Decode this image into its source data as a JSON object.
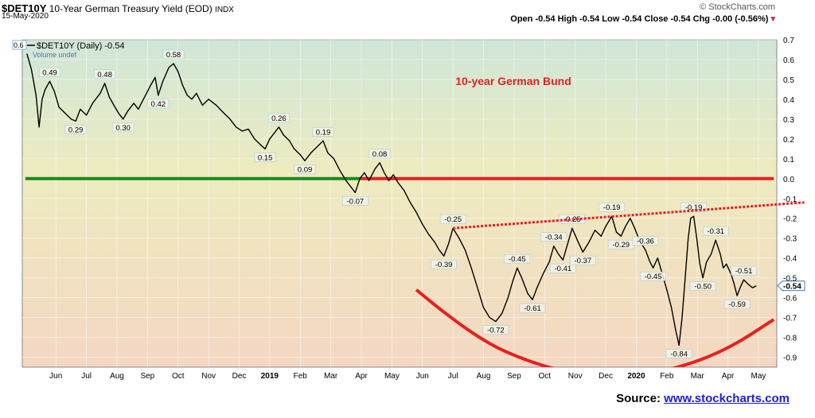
{
  "header": {
    "symbol": "$DET10Y",
    "name": "10-Year German Treasury Yield (EOD)",
    "exchange": "INDX",
    "date": "15-May-2020",
    "legend_series": "$DET10Y (Daily) -0.54",
    "legend_volume": "Volume undef",
    "left_marker": "0.6",
    "brand": "© StockCharts.com",
    "ohlc": {
      "open_label": "Open",
      "open": "-0.54",
      "high_label": "High",
      "high": "-0.54",
      "low_label": "Low",
      "low": "-0.54",
      "close_label": "Close",
      "close": "-0.54",
      "chg_label": "Chg",
      "chg": "-0.00 (-0.56%)"
    }
  },
  "source": {
    "label": "Source:",
    "link": "www.stockcharts.com"
  },
  "chart_data": {
    "type": "line",
    "title": "10-year German Bund",
    "ylim": [
      -0.95,
      0.7
    ],
    "y_ticks": [
      "0.7",
      "0.6",
      "0.5",
      "0.4",
      "0.3",
      "0.2",
      "0.1",
      "0.0",
      "-0.1",
      "-0.2",
      "-0.3",
      "-0.4",
      "-0.5",
      "-0.6",
      "-0.7",
      "-0.8",
      "-0.9"
    ],
    "y_tick_values": [
      0.7,
      0.6,
      0.5,
      0.4,
      0.3,
      0.2,
      0.1,
      0.0,
      -0.1,
      -0.2,
      -0.3,
      -0.4,
      -0.5,
      -0.6,
      -0.7,
      -0.8,
      -0.9
    ],
    "x_ticks": [
      {
        "label": "Jun",
        "t": 1.0,
        "bold": false
      },
      {
        "label": "Jul",
        "t": 2.0,
        "bold": false
      },
      {
        "label": "Aug",
        "t": 3.0,
        "bold": false
      },
      {
        "label": "Sep",
        "t": 4.0,
        "bold": false
      },
      {
        "label": "Oct",
        "t": 5.0,
        "bold": false
      },
      {
        "label": "Nov",
        "t": 6.0,
        "bold": false
      },
      {
        "label": "Dec",
        "t": 7.0,
        "bold": false
      },
      {
        "label": "2019",
        "t": 8.0,
        "bold": true
      },
      {
        "label": "Feb",
        "t": 9.0,
        "bold": false
      },
      {
        "label": "Mar",
        "t": 10.0,
        "bold": false
      },
      {
        "label": "Apr",
        "t": 11.0,
        "bold": false
      },
      {
        "label": "May",
        "t": 12.0,
        "bold": false
      },
      {
        "label": "Jun",
        "t": 13.0,
        "bold": false
      },
      {
        "label": "Jul",
        "t": 14.0,
        "bold": false
      },
      {
        "label": "Aug",
        "t": 15.0,
        "bold": false
      },
      {
        "label": "Sep",
        "t": 16.0,
        "bold": false
      },
      {
        "label": "Oct",
        "t": 17.0,
        "bold": false
      },
      {
        "label": "Nov",
        "t": 18.0,
        "bold": false
      },
      {
        "label": "Dec",
        "t": 19.0,
        "bold": false
      },
      {
        "label": "2020",
        "t": 20.0,
        "bold": true
      },
      {
        "label": "Feb",
        "t": 21.0,
        "bold": false
      },
      {
        "label": "Mar",
        "t": 22.0,
        "bold": false
      },
      {
        "label": "Apr",
        "t": 23.0,
        "bold": false
      },
      {
        "label": "May",
        "t": 24.0,
        "bold": false
      }
    ],
    "series": [
      {
        "values": [
          [
            0.05,
            0.63
          ],
          [
            0.2,
            0.55
          ],
          [
            0.35,
            0.42
          ],
          [
            0.45,
            0.26
          ],
          [
            0.55,
            0.4
          ],
          [
            0.65,
            0.45
          ],
          [
            0.8,
            0.49
          ],
          [
            0.95,
            0.44
          ],
          [
            1.1,
            0.36
          ],
          [
            1.3,
            0.33
          ],
          [
            1.5,
            0.3
          ],
          [
            1.65,
            0.29
          ],
          [
            1.8,
            0.35
          ],
          [
            2.0,
            0.32
          ],
          [
            2.2,
            0.38
          ],
          [
            2.45,
            0.43
          ],
          [
            2.6,
            0.48
          ],
          [
            2.75,
            0.41
          ],
          [
            2.9,
            0.37
          ],
          [
            3.05,
            0.33
          ],
          [
            3.2,
            0.3
          ],
          [
            3.35,
            0.34
          ],
          [
            3.55,
            0.38
          ],
          [
            3.7,
            0.35
          ],
          [
            3.9,
            0.41
          ],
          [
            4.1,
            0.47
          ],
          [
            4.25,
            0.51
          ],
          [
            4.35,
            0.42
          ],
          [
            4.5,
            0.49
          ],
          [
            4.7,
            0.56
          ],
          [
            4.85,
            0.58
          ],
          [
            5.0,
            0.54
          ],
          [
            5.15,
            0.47
          ],
          [
            5.3,
            0.42
          ],
          [
            5.45,
            0.4
          ],
          [
            5.6,
            0.43
          ],
          [
            5.8,
            0.37
          ],
          [
            6.0,
            0.4
          ],
          [
            6.25,
            0.37
          ],
          [
            6.5,
            0.33
          ],
          [
            6.7,
            0.3
          ],
          [
            6.9,
            0.26
          ],
          [
            7.1,
            0.24
          ],
          [
            7.3,
            0.25
          ],
          [
            7.5,
            0.2
          ],
          [
            7.7,
            0.17
          ],
          [
            7.85,
            0.15
          ],
          [
            8.0,
            0.2
          ],
          [
            8.15,
            0.23
          ],
          [
            8.3,
            0.26
          ],
          [
            8.45,
            0.22
          ],
          [
            8.65,
            0.19
          ],
          [
            8.8,
            0.15
          ],
          [
            9.0,
            0.12
          ],
          [
            9.15,
            0.09
          ],
          [
            9.35,
            0.13
          ],
          [
            9.55,
            0.16
          ],
          [
            9.75,
            0.19
          ],
          [
            9.9,
            0.13
          ],
          [
            10.1,
            0.1
          ],
          [
            10.3,
            0.04
          ],
          [
            10.5,
            -0.01
          ],
          [
            10.7,
            -0.05
          ],
          [
            10.8,
            -0.07
          ],
          [
            10.95,
            0.0
          ],
          [
            11.1,
            0.03
          ],
          [
            11.25,
            -0.01
          ],
          [
            11.45,
            0.05
          ],
          [
            11.6,
            0.08
          ],
          [
            11.75,
            0.03
          ],
          [
            11.9,
            -0.01
          ],
          [
            12.05,
            0.02
          ],
          [
            12.2,
            -0.02
          ],
          [
            12.4,
            -0.06
          ],
          [
            12.6,
            -0.12
          ],
          [
            12.8,
            -0.17
          ],
          [
            13.0,
            -0.23
          ],
          [
            13.2,
            -0.28
          ],
          [
            13.4,
            -0.32
          ],
          [
            13.55,
            -0.36
          ],
          [
            13.7,
            -0.39
          ],
          [
            13.85,
            -0.33
          ],
          [
            14.0,
            -0.25
          ],
          [
            14.2,
            -0.3
          ],
          [
            14.4,
            -0.36
          ],
          [
            14.6,
            -0.45
          ],
          [
            14.8,
            -0.55
          ],
          [
            15.0,
            -0.65
          ],
          [
            15.2,
            -0.7
          ],
          [
            15.4,
            -0.72
          ],
          [
            15.6,
            -0.68
          ],
          [
            15.8,
            -0.6
          ],
          [
            15.95,
            -0.52
          ],
          [
            16.1,
            -0.45
          ],
          [
            16.25,
            -0.5
          ],
          [
            16.45,
            -0.58
          ],
          [
            16.6,
            -0.61
          ],
          [
            16.75,
            -0.55
          ],
          [
            16.95,
            -0.48
          ],
          [
            17.15,
            -0.42
          ],
          [
            17.3,
            -0.34
          ],
          [
            17.45,
            -0.38
          ],
          [
            17.6,
            -0.41
          ],
          [
            17.75,
            -0.33
          ],
          [
            17.9,
            -0.25
          ],
          [
            18.1,
            -0.32
          ],
          [
            18.25,
            -0.37
          ],
          [
            18.45,
            -0.32
          ],
          [
            18.65,
            -0.26
          ],
          [
            18.85,
            -0.29
          ],
          [
            19.0,
            -0.24
          ],
          [
            19.2,
            -0.19
          ],
          [
            19.35,
            -0.27
          ],
          [
            19.5,
            -0.29
          ],
          [
            19.65,
            -0.24
          ],
          [
            19.8,
            -0.2
          ],
          [
            19.95,
            -0.25
          ],
          [
            20.1,
            -0.31
          ],
          [
            20.3,
            -0.36
          ],
          [
            20.45,
            -0.42
          ],
          [
            20.55,
            -0.45
          ],
          [
            20.7,
            -0.4
          ],
          [
            20.85,
            -0.48
          ],
          [
            21.0,
            -0.56
          ],
          [
            21.15,
            -0.65
          ],
          [
            21.3,
            -0.77
          ],
          [
            21.4,
            -0.84
          ],
          [
            21.5,
            -0.7
          ],
          [
            21.6,
            -0.5
          ],
          [
            21.7,
            -0.3
          ],
          [
            21.78,
            -0.2
          ],
          [
            21.88,
            -0.19
          ],
          [
            21.98,
            -0.3
          ],
          [
            22.08,
            -0.43
          ],
          [
            22.18,
            -0.5
          ],
          [
            22.3,
            -0.42
          ],
          [
            22.45,
            -0.38
          ],
          [
            22.6,
            -0.31
          ],
          [
            22.75,
            -0.38
          ],
          [
            22.85,
            -0.45
          ],
          [
            22.95,
            -0.43
          ],
          [
            23.1,
            -0.48
          ],
          [
            23.2,
            -0.53
          ],
          [
            23.3,
            -0.59
          ],
          [
            23.4,
            -0.55
          ],
          [
            23.52,
            -0.51
          ],
          [
            23.65,
            -0.53
          ],
          [
            23.8,
            -0.55
          ],
          [
            23.93,
            -0.54
          ]
        ]
      }
    ],
    "price_labels": [
      {
        "t": 0.8,
        "v": 0.49,
        "label": "0.49",
        "pos": "above"
      },
      {
        "t": 1.65,
        "v": 0.29,
        "label": "0.29",
        "pos": "below"
      },
      {
        "t": 2.6,
        "v": 0.48,
        "label": "0.48",
        "pos": "above"
      },
      {
        "t": 3.2,
        "v": 0.3,
        "label": "0.30",
        "pos": "below"
      },
      {
        "t": 4.85,
        "v": 0.58,
        "label": "0.58",
        "pos": "above"
      },
      {
        "t": 4.35,
        "v": 0.42,
        "label": "0.42",
        "pos": "below"
      },
      {
        "t": 8.3,
        "v": 0.26,
        "label": "0.26",
        "pos": "above"
      },
      {
        "t": 7.85,
        "v": 0.15,
        "label": "0.15",
        "pos": "below"
      },
      {
        "t": 9.75,
        "v": 0.19,
        "label": "0.19",
        "pos": "above"
      },
      {
        "t": 9.15,
        "v": 0.09,
        "label": "0.09",
        "pos": "below"
      },
      {
        "t": 11.6,
        "v": 0.08,
        "label": "0.08",
        "pos": "above"
      },
      {
        "t": 10.8,
        "v": -0.07,
        "label": "-0.07",
        "pos": "below"
      },
      {
        "t": 14.0,
        "v": -0.25,
        "label": "-0.25",
        "pos": "above"
      },
      {
        "t": 13.7,
        "v": -0.39,
        "label": "-0.39",
        "pos": "below"
      },
      {
        "t": 15.4,
        "v": -0.72,
        "label": "-0.72",
        "pos": "below"
      },
      {
        "t": 16.1,
        "v": -0.45,
        "label": "-0.45",
        "pos": "above"
      },
      {
        "t": 16.6,
        "v": -0.61,
        "label": "-0.61",
        "pos": "below"
      },
      {
        "t": 17.3,
        "v": -0.34,
        "label": "-0.34",
        "pos": "above"
      },
      {
        "t": 17.6,
        "v": -0.41,
        "label": "-0.41",
        "pos": "below"
      },
      {
        "t": 17.9,
        "v": -0.25,
        "label": "-0.25",
        "pos": "above"
      },
      {
        "t": 18.25,
        "v": -0.37,
        "label": "-0.37",
        "pos": "below"
      },
      {
        "t": 19.2,
        "v": -0.19,
        "label": "-0.19",
        "pos": "above"
      },
      {
        "t": 19.5,
        "v": -0.29,
        "label": "-0.29",
        "pos": "below"
      },
      {
        "t": 20.3,
        "v": -0.36,
        "label": "-0.36",
        "pos": "above"
      },
      {
        "t": 20.55,
        "v": -0.45,
        "label": "-0.45",
        "pos": "below"
      },
      {
        "t": 21.4,
        "v": -0.84,
        "label": "-0.84",
        "pos": "below"
      },
      {
        "t": 21.88,
        "v": -0.19,
        "label": "-0.19",
        "pos": "above"
      },
      {
        "t": 22.18,
        "v": -0.5,
        "label": "-0.50",
        "pos": "below"
      },
      {
        "t": 22.6,
        "v": -0.31,
        "label": "-0.31",
        "pos": "above"
      },
      {
        "t": 23.3,
        "v": -0.59,
        "label": "-0.59",
        "pos": "below"
      },
      {
        "t": 23.52,
        "v": -0.51,
        "label": "-0.51",
        "pos": "above"
      }
    ],
    "last_value_label": "-0.54",
    "last_value": -0.54,
    "annotations": {
      "green_line": {
        "value": 0.0,
        "t_from": 0.0,
        "t_to": 11.0,
        "color": "#1a8a1a"
      },
      "red_line": {
        "value": 0.0,
        "t_from": 11.0,
        "t_to": 24.5,
        "color": "#e62020"
      },
      "resistance": {
        "from": [
          14.0,
          -0.25
        ],
        "to": [
          25.5,
          -0.12
        ],
        "color": "#e62020",
        "style": "dotted"
      },
      "support_curve": {
        "points": [
          [
            12.8,
            -0.56
          ],
          [
            14.5,
            -0.78
          ],
          [
            16.5,
            -0.93
          ],
          [
            19.0,
            -1.02
          ],
          [
            21.3,
            -0.96
          ],
          [
            23.0,
            -0.86
          ],
          [
            24.5,
            -0.71
          ]
        ],
        "color": "#e62020"
      }
    },
    "colors": {
      "line": "#000000",
      "title": "#e62020"
    },
    "x_range": [
      -0.1,
      24.6
    ],
    "grid": true
  }
}
